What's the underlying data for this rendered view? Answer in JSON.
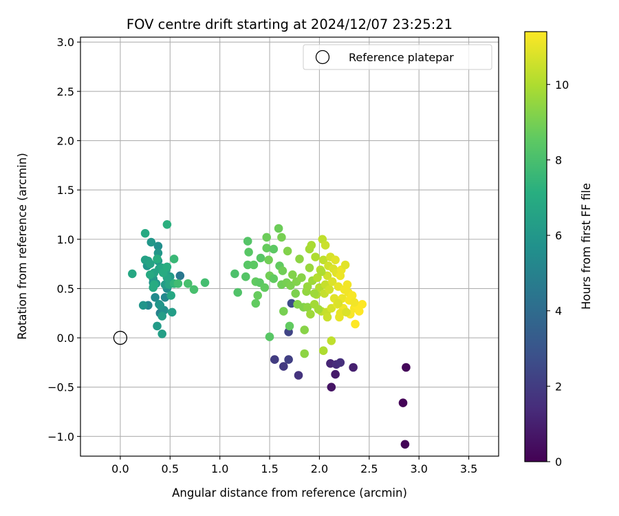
{
  "chart_data": {
    "type": "scatter",
    "title": "FOV centre drift starting at 2024/12/07 23:25:21",
    "xlabel": "Angular distance from reference (arcmin)",
    "ylabel": "Rotation from reference (arcmin)",
    "xlim": [
      -0.4,
      3.8
    ],
    "ylim": [
      -1.2,
      3.05
    ],
    "xticks": [
      0.0,
      0.5,
      1.0,
      1.5,
      2.0,
      2.5,
      3.0,
      3.5
    ],
    "xtick_labels": [
      "0.0",
      "0.5",
      "1.0",
      "1.5",
      "2.0",
      "2.5",
      "3.0",
      "3.5"
    ],
    "yticks": [
      -1.0,
      -0.5,
      0.0,
      0.5,
      1.0,
      1.5,
      2.0,
      2.5,
      3.0
    ],
    "ytick_labels": [
      "−1.0",
      "−0.5",
      "0.0",
      "0.5",
      "1.0",
      "1.5",
      "2.0",
      "2.5",
      "3.0"
    ],
    "grid": true,
    "legend": {
      "placement": "top-right",
      "entries": [
        "Reference platepar"
      ]
    },
    "reference": {
      "x": 0.0,
      "y": 0.0,
      "marker": "open-circle"
    },
    "colorbar": {
      "label": "Hours from first FF file",
      "colormap": "viridis",
      "range": [
        0,
        11.4
      ],
      "ticks": [
        0,
        2,
        4,
        6,
        8,
        10
      ],
      "tick_labels": [
        "0",
        "2",
        "4",
        "6",
        "8",
        "10"
      ]
    },
    "points": [
      [
        2.84,
        -0.66,
        0.1
      ],
      [
        2.86,
        -1.08,
        0.1
      ],
      [
        2.87,
        -0.3,
        0.2
      ],
      [
        2.12,
        -0.5,
        0.6
      ],
      [
        2.16,
        -0.37,
        0.8
      ],
      [
        2.34,
        -0.3,
        1.0
      ],
      [
        2.11,
        -0.26,
        1.2
      ],
      [
        2.17,
        -0.27,
        1.4
      ],
      [
        2.21,
        -0.25,
        1.5
      ],
      [
        1.79,
        -0.38,
        1.7
      ],
      [
        1.64,
        -0.29,
        1.9
      ],
      [
        1.55,
        -0.22,
        2.0
      ],
      [
        1.69,
        -0.22,
        2.1
      ],
      [
        1.69,
        0.06,
        2.3
      ],
      [
        1.72,
        0.35,
        2.6
      ],
      [
        0.6,
        0.63,
        4.5
      ],
      [
        0.4,
        0.25,
        5.0
      ],
      [
        0.28,
        0.33,
        5.2
      ],
      [
        0.35,
        0.41,
        5.4
      ],
      [
        0.45,
        0.41,
        5.3
      ],
      [
        0.47,
        0.5,
        5.5
      ],
      [
        0.38,
        0.93,
        5.6
      ],
      [
        0.33,
        0.56,
        5.7
      ],
      [
        0.44,
        0.28,
        5.6
      ],
      [
        0.39,
        0.34,
        5.8
      ],
      [
        0.23,
        0.33,
        5.9
      ],
      [
        0.4,
        0.33,
        5.9
      ],
      [
        0.27,
        0.73,
        5.9
      ],
      [
        0.31,
        0.97,
        6.0
      ],
      [
        0.38,
        0.86,
        6.0
      ],
      [
        0.38,
        0.78,
        6.1
      ],
      [
        0.33,
        0.6,
        6.1
      ],
      [
        0.36,
        0.55,
        6.1
      ],
      [
        0.5,
        0.62,
        6.2
      ],
      [
        0.45,
        0.54,
        6.2
      ],
      [
        0.42,
        0.22,
        6.3
      ],
      [
        0.52,
        0.26,
        6.3
      ],
      [
        0.37,
        0.12,
        6.2
      ],
      [
        0.42,
        0.04,
        6.4
      ],
      [
        0.25,
        0.79,
        6.5
      ],
      [
        0.28,
        0.78,
        6.5
      ],
      [
        0.3,
        0.75,
        6.6
      ],
      [
        0.34,
        0.66,
        6.6
      ],
      [
        0.39,
        0.7,
        6.6
      ],
      [
        0.46,
        0.69,
        6.6
      ],
      [
        0.47,
        0.61,
        6.7
      ],
      [
        0.49,
        0.54,
        6.7
      ],
      [
        0.51,
        0.43,
        6.8
      ],
      [
        0.42,
        0.71,
        6.8
      ],
      [
        0.12,
        0.65,
        6.8
      ],
      [
        0.25,
        1.06,
        6.9
      ],
      [
        0.3,
        0.64,
        6.9
      ],
      [
        0.33,
        0.51,
        6.9
      ],
      [
        0.34,
        0.54,
        7.0
      ],
      [
        0.43,
        0.66,
        7.0
      ],
      [
        0.47,
        0.72,
        7.1
      ],
      [
        0.37,
        0.8,
        7.1
      ],
      [
        0.47,
        1.15,
        7.2
      ],
      [
        0.54,
        0.55,
        7.4
      ],
      [
        0.54,
        0.8,
        7.6
      ],
      [
        0.58,
        0.55,
        7.8
      ],
      [
        0.68,
        0.55,
        8.0
      ],
      [
        0.74,
        0.49,
        8.0
      ],
      [
        0.85,
        0.56,
        7.9
      ],
      [
        1.15,
        0.65,
        8.1
      ],
      [
        1.18,
        0.46,
        8.2
      ],
      [
        1.26,
        0.62,
        8.3
      ],
      [
        1.28,
        0.98,
        8.3
      ],
      [
        1.28,
        0.74,
        8.4
      ],
      [
        1.29,
        0.87,
        8.4
      ],
      [
        1.34,
        0.74,
        8.5
      ],
      [
        1.36,
        0.57,
        8.6
      ],
      [
        1.36,
        0.35,
        8.6
      ],
      [
        1.38,
        0.43,
        8.7
      ],
      [
        1.4,
        0.56,
        8.5
      ],
      [
        1.41,
        0.81,
        8.4
      ],
      [
        1.45,
        0.51,
        8.6
      ],
      [
        1.47,
        0.91,
        8.7
      ],
      [
        1.47,
        1.02,
        8.8
      ],
      [
        1.5,
        0.63,
        8.9
      ],
      [
        1.49,
        0.79,
        8.9
      ],
      [
        1.54,
        0.9,
        8.5
      ],
      [
        1.54,
        0.6,
        8.6
      ],
      [
        1.5,
        0.01,
        8.4
      ],
      [
        1.59,
        1.11,
        8.8
      ],
      [
        1.6,
        0.73,
        8.6
      ],
      [
        1.62,
        0.54,
        8.9
      ],
      [
        1.62,
        1.02,
        9.0
      ],
      [
        1.63,
        0.68,
        8.9
      ],
      [
        1.64,
        0.27,
        9.0
      ],
      [
        1.67,
        0.56,
        9.0
      ],
      [
        1.68,
        0.88,
        9.2
      ],
      [
        1.7,
        0.12,
        8.6
      ],
      [
        1.71,
        0.53,
        9.1
      ],
      [
        1.73,
        0.64,
        9.2
      ],
      [
        1.76,
        0.45,
        9.1
      ],
      [
        1.77,
        0.57,
        9.2
      ],
      [
        1.78,
        0.34,
        9.2
      ],
      [
        1.8,
        0.8,
        9.4
      ],
      [
        1.82,
        0.61,
        9.3
      ],
      [
        1.84,
        0.31,
        9.2
      ],
      [
        1.85,
        0.08,
        9.3
      ],
      [
        1.85,
        -0.16,
        9.4
      ],
      [
        1.87,
        0.47,
        9.5
      ],
      [
        1.88,
        0.31,
        9.4
      ],
      [
        1.88,
        0.52,
        9.6
      ],
      [
        1.9,
        0.71,
        9.6
      ],
      [
        1.9,
        0.9,
        9.8
      ],
      [
        1.91,
        0.24,
        9.7
      ],
      [
        1.92,
        0.94,
        9.9
      ],
      [
        1.93,
        0.58,
        9.7
      ],
      [
        1.95,
        0.34,
        9.8
      ],
      [
        1.96,
        0.82,
        10.0
      ],
      [
        1.97,
        0.44,
        10.0
      ],
      [
        1.98,
        0.61,
        10.1
      ],
      [
        2.0,
        0.51,
        10.1
      ],
      [
        2.01,
        0.69,
        10.2
      ],
      [
        2.02,
        0.27,
        10.2
      ],
      [
        2.03,
        1.0,
        10.3
      ],
      [
        2.04,
        0.79,
        10.3
      ],
      [
        2.04,
        -0.13,
        10.0
      ],
      [
        2.05,
        0.45,
        10.4
      ],
      [
        2.06,
        0.54,
        10.4
      ],
      [
        2.06,
        0.94,
        10.5
      ],
      [
        2.07,
        0.26,
        10.4
      ],
      [
        2.08,
        0.63,
        10.6
      ],
      [
        2.09,
        0.73,
        10.6
      ],
      [
        2.1,
        0.49,
        10.6
      ],
      [
        2.11,
        0.82,
        10.7
      ],
      [
        2.12,
        -0.03,
        10.3
      ],
      [
        2.12,
        0.3,
        10.7
      ],
      [
        2.13,
        0.57,
        10.8
      ],
      [
        2.14,
        0.7,
        10.8
      ],
      [
        2.15,
        0.4,
        10.9
      ],
      [
        2.16,
        0.79,
        10.9
      ],
      [
        2.17,
        0.66,
        10.9
      ],
      [
        2.18,
        0.34,
        11.0
      ],
      [
        2.19,
        0.52,
        11.0
      ],
      [
        2.2,
        0.21,
        11.0
      ],
      [
        2.21,
        0.63,
        11.1
      ],
      [
        2.22,
        0.69,
        11.1
      ],
      [
        2.23,
        0.4,
        11.1
      ],
      [
        2.24,
        0.3,
        11.2
      ],
      [
        2.25,
        0.49,
        11.2
      ],
      [
        2.26,
        0.74,
        10.9
      ],
      [
        2.28,
        0.54,
        11.2
      ],
      [
        2.29,
        0.46,
        11.2
      ],
      [
        2.3,
        0.38,
        11.3
      ],
      [
        2.31,
        0.24,
        11.3
      ],
      [
        2.33,
        0.43,
        11.3
      ],
      [
        2.35,
        0.3,
        11.3
      ],
      [
        2.36,
        0.14,
        11.4
      ],
      [
        2.37,
        0.33,
        11.4
      ],
      [
        2.4,
        0.27,
        11.4
      ],
      [
        2.43,
        0.34,
        11.4
      ],
      [
        2.21,
        0.25,
        11.0
      ],
      [
        1.99,
        0.29,
        9.8
      ],
      [
        1.95,
        0.45,
        9.7
      ],
      [
        2.08,
        0.21,
        10.5
      ],
      [
        2.02,
        0.67,
        10.0
      ],
      [
        2.19,
        0.35,
        10.8
      ],
      [
        2.27,
        0.26,
        10.8
      ],
      [
        2.35,
        0.36,
        11.2
      ]
    ]
  }
}
